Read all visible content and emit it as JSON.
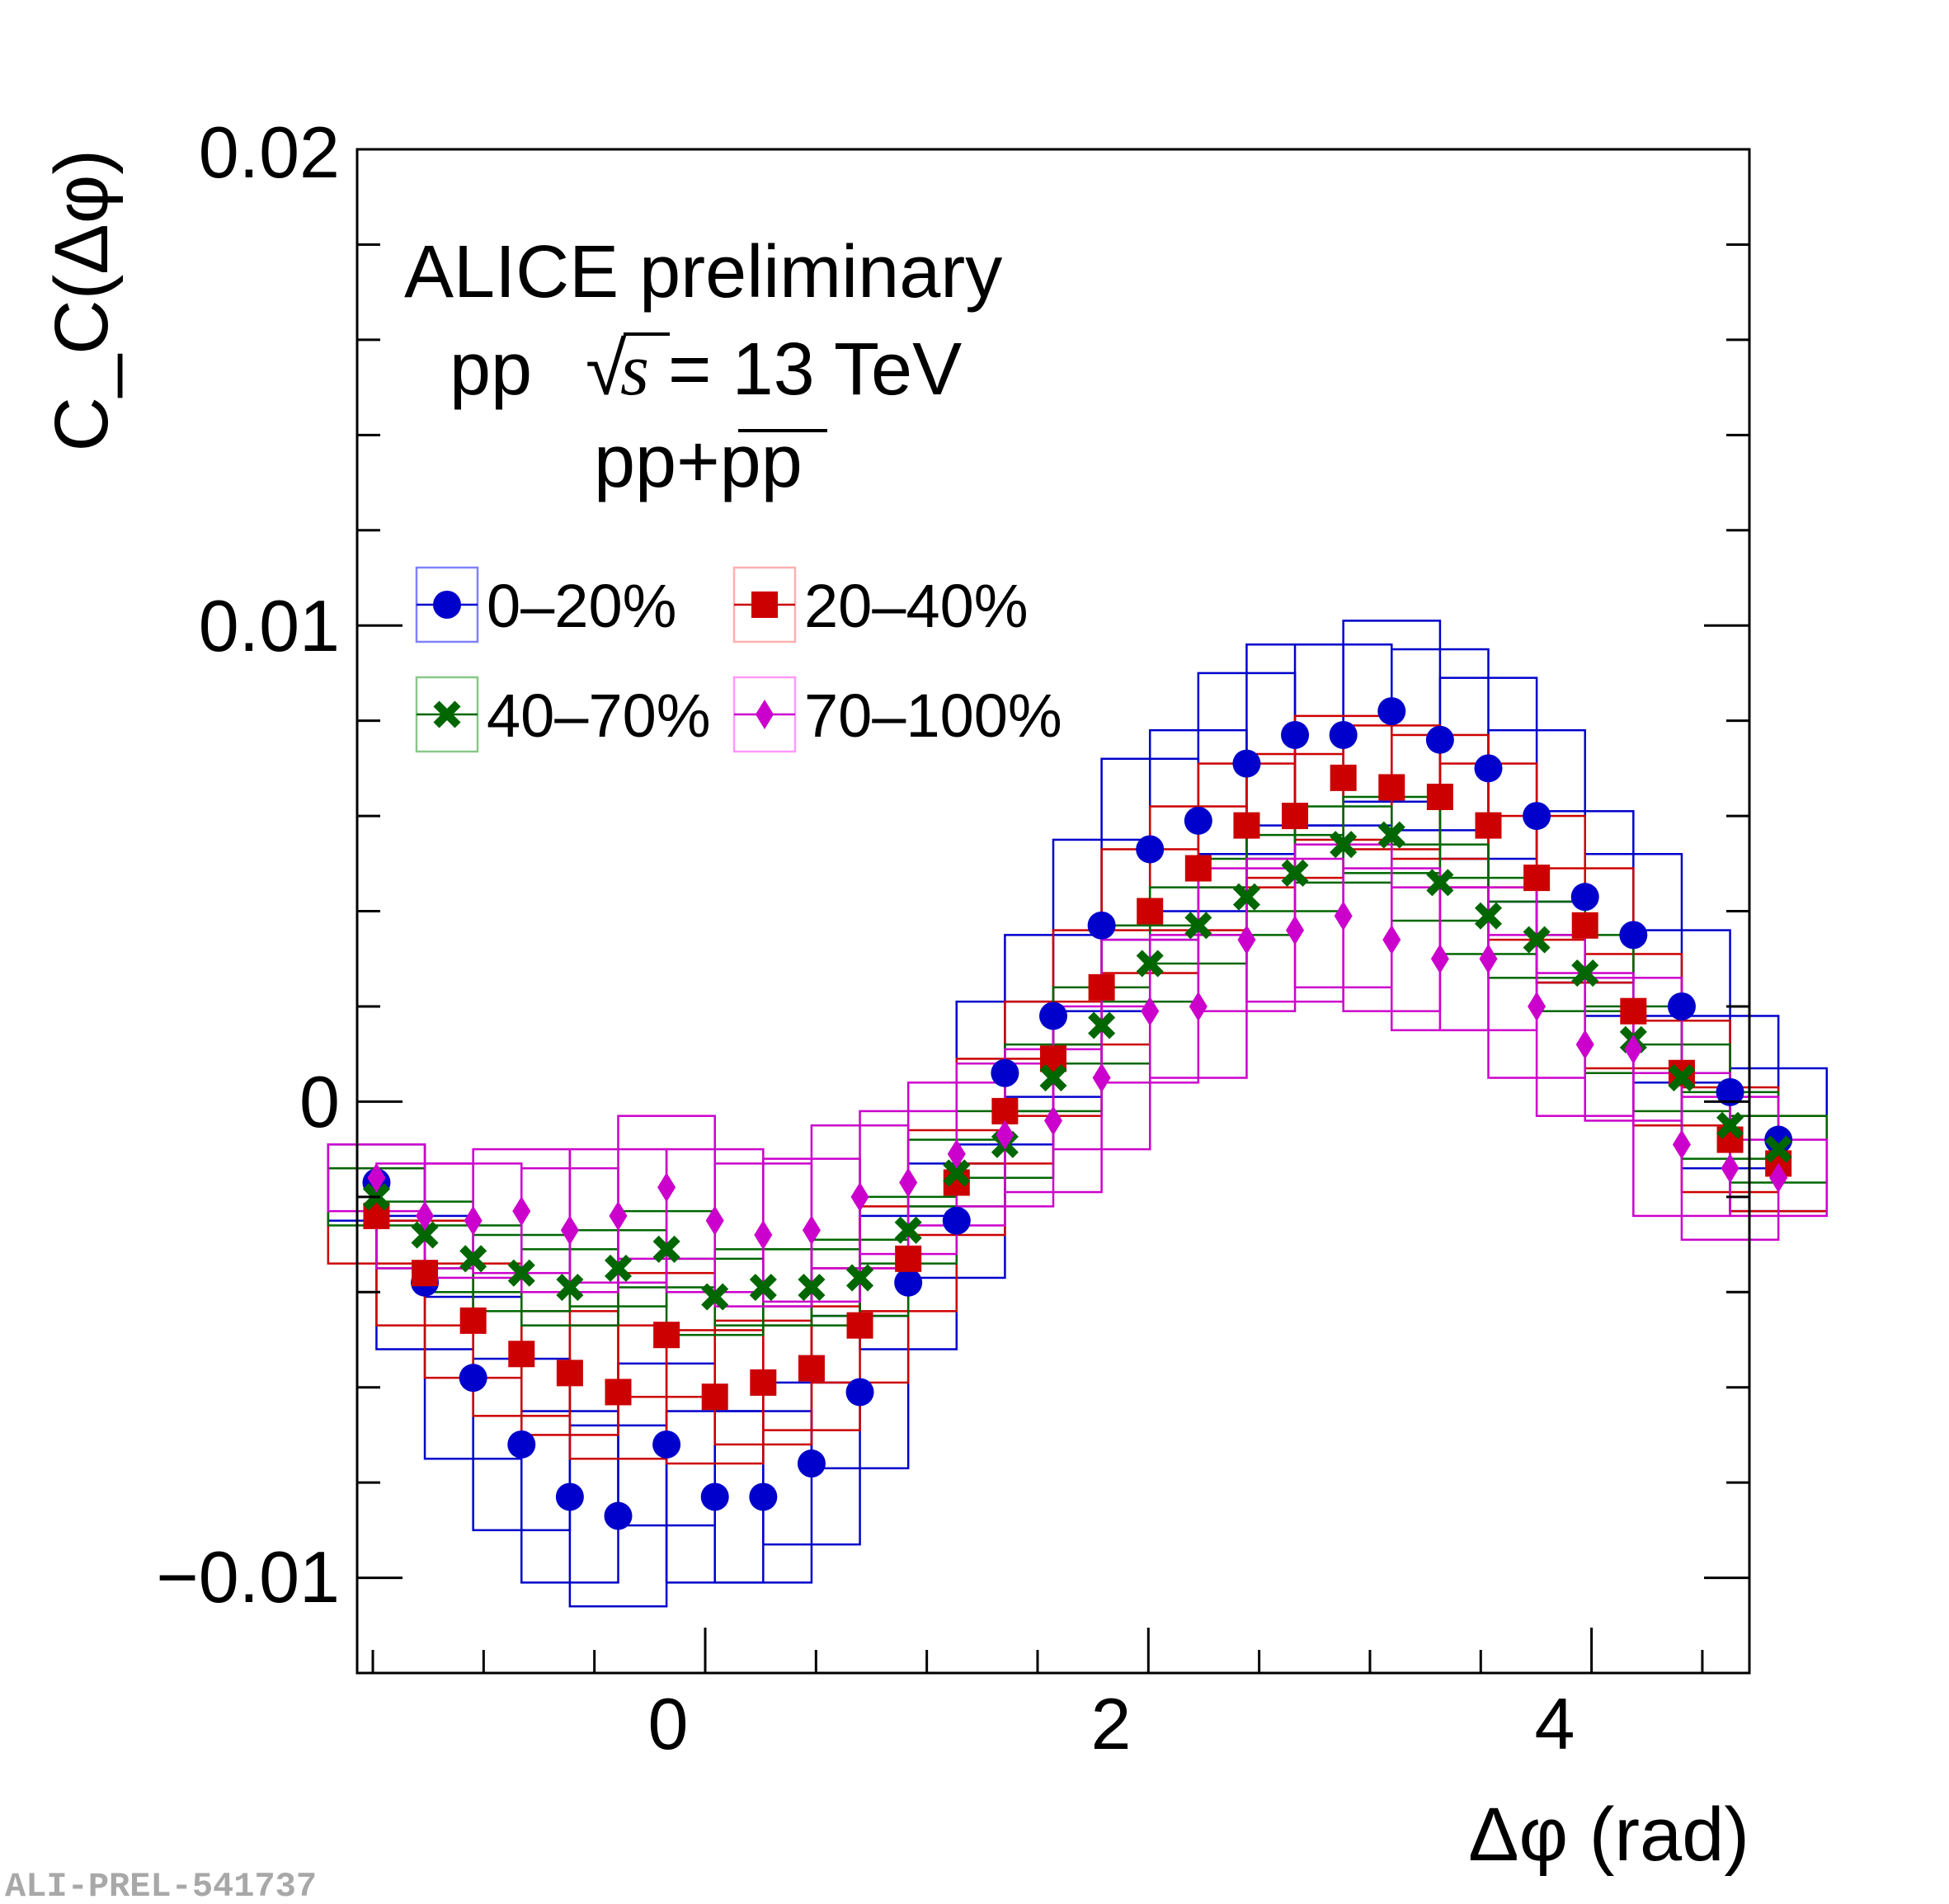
{
  "chart_data": {
    "type": "scatter",
    "title": "",
    "xlabel": "Δφ (rad)",
    "ylabel": "C_C(Δφ)",
    "xlim": [
      -1.5708,
      4.7124
    ],
    "ylim": [
      -0.012,
      0.02
    ],
    "x_ticks": [
      0,
      2,
      4
    ],
    "x_tick_labels": [
      "0",
      "2",
      "4"
    ],
    "y_ticks": [
      -0.01,
      0,
      0.01,
      0.02
    ],
    "y_tick_labels": [
      "−0.01",
      "0",
      "0.01",
      "0.02"
    ],
    "annotations": {
      "line1": "ALICE preliminary",
      "line2_prefix": "pp",
      "line2_s": "s",
      "line2_suffix": " = 13 TeV",
      "line3": "pp+pp"
    },
    "watermark": "ALI-PREL-541737",
    "x": [
      -1.4835,
      -1.2654,
      -1.0472,
      -0.829,
      -0.6109,
      -0.3927,
      -0.1745,
      0.0436,
      0.2618,
      0.48,
      0.6981,
      0.9163,
      1.1345,
      1.3526,
      1.5708,
      1.789,
      2.0071,
      2.2253,
      2.4435,
      2.6616,
      2.8798,
      3.098,
      3.3161,
      3.5343,
      3.7525,
      3.9706,
      4.1888,
      4.407,
      4.6251,
      4.8433
    ],
    "box_half_width": 0.2182,
    "series": [
      {
        "name": "0–20%",
        "marker": "circle",
        "color": "#0000cc",
        "values": [
          -0.0017,
          -0.0038,
          -0.0058,
          -0.0072,
          -0.0083,
          -0.0087,
          -0.0072,
          -0.0083,
          -0.0083,
          -0.0076,
          -0.0061,
          -0.0038,
          -0.0025,
          0.0006,
          0.0018,
          0.0037,
          0.0053,
          0.0059,
          0.0071,
          0.0077,
          0.0077,
          0.0082,
          0.0076,
          0.007,
          0.006,
          0.0043,
          0.0035,
          0.002,
          0.0002,
          -0.0008
        ],
        "sys": [
          0.0008,
          0.0014,
          0.0017,
          0.0018,
          0.0018,
          0.0019,
          0.0017,
          0.0018,
          0.0018,
          0.0017,
          0.0016,
          0.0014,
          0.0012,
          0.0015,
          0.0017,
          0.0018,
          0.0019,
          0.0019,
          0.0019,
          0.0019,
          0.0019,
          0.0019,
          0.0019,
          0.0019,
          0.0018,
          0.0018,
          0.0017,
          0.0016,
          0.0016,
          0.0015
        ]
      },
      {
        "name": "20–40%",
        "marker": "square",
        "color": "#cc0000",
        "values": [
          -0.0024,
          -0.0036,
          -0.0046,
          -0.0053,
          -0.0057,
          -0.0061,
          -0.0049,
          -0.0062,
          -0.0059,
          -0.0056,
          -0.0047,
          -0.0033,
          -0.0017,
          -0.0002,
          0.0009,
          0.0024,
          0.004,
          0.0049,
          0.0058,
          0.006,
          0.0068,
          0.0066,
          0.0064,
          0.0058,
          0.0047,
          0.0037,
          0.0019,
          0.0006,
          -0.0008,
          -0.0013
        ],
        "sys": [
          0.001,
          0.0011,
          0.0012,
          0.0013,
          0.0013,
          0.0014,
          0.0013,
          0.0014,
          0.0013,
          0.0013,
          0.0012,
          0.0011,
          0.0011,
          0.0011,
          0.0012,
          0.0012,
          0.0013,
          0.0013,
          0.0013,
          0.0013,
          0.0013,
          0.0013,
          0.0013,
          0.0013,
          0.0013,
          0.0012,
          0.0012,
          0.0011,
          0.0011,
          0.001
        ]
      },
      {
        "name": "40–70%",
        "marker": "x",
        "color": "#006600",
        "values": [
          -0.002,
          -0.0028,
          -0.0033,
          -0.0036,
          -0.0039,
          -0.0035,
          -0.0031,
          -0.0041,
          -0.0039,
          -0.0039,
          -0.0037,
          -0.0027,
          -0.0015,
          -0.0009,
          0.0005,
          0.0016,
          0.0029,
          0.0037,
          0.0043,
          0.0048,
          0.0054,
          0.0056,
          0.0046,
          0.0039,
          0.0034,
          0.0027,
          0.0013,
          0.0005,
          -0.0005,
          -0.001
        ],
        "sys": [
          0.0006,
          0.0007,
          0.0007,
          0.0008,
          0.0008,
          0.0008,
          0.0008,
          0.0008,
          0.0008,
          0.0008,
          0.0008,
          0.0007,
          0.0007,
          0.0007,
          0.0007,
          0.0008,
          0.0008,
          0.0008,
          0.0008,
          0.0008,
          0.0008,
          0.0008,
          0.0008,
          0.0008,
          0.0008,
          0.0008,
          0.0007,
          0.0007,
          0.0007,
          0.0007
        ]
      },
      {
        "name": "70–100%",
        "marker": "diamond",
        "color": "#cc00cc",
        "values": [
          -0.0016,
          -0.0024,
          -0.0025,
          -0.0023,
          -0.0027,
          -0.0024,
          -0.0018,
          -0.0025,
          -0.0028,
          -0.0027,
          -0.002,
          -0.0017,
          -0.0011,
          -0.0007,
          -0.0004,
          0.0005,
          0.0019,
          0.002,
          0.0034,
          0.0036,
          0.0039,
          0.0034,
          0.003,
          0.003,
          0.002,
          0.0012,
          0.0011,
          -0.0009,
          -0.0014,
          -0.0016
        ],
        "sys": [
          0.0007,
          0.0011,
          0.0012,
          0.0013,
          0.0013,
          0.0014,
          0.0015,
          0.0015,
          0.0015,
          0.0015,
          0.0015,
          0.0015,
          0.0015,
          0.0015,
          0.0015,
          0.0015,
          0.0015,
          0.0015,
          0.0015,
          0.0015,
          0.0015,
          0.0015,
          0.0015,
          0.0015,
          0.0015,
          0.0015,
          0.0015,
          0.0015,
          0.0015,
          0.0008
        ]
      }
    ]
  }
}
